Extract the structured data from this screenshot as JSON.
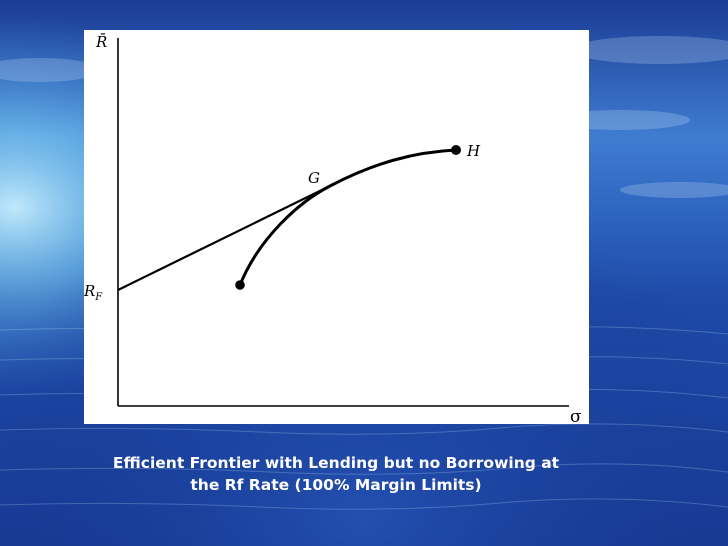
{
  "slide": {
    "caption_line1": "Efficient Frontier with Lending but no Borrowing at",
    "caption_line2": "the Rf Rate (100% Margin Limits)"
  },
  "diagram": {
    "y_axis_label": "R̄",
    "x_axis_label": "σ",
    "rf_label_main": "R",
    "rf_label_sub": "F",
    "point_g_label": "G",
    "point_h_label": "H"
  },
  "colors": {
    "line": "#000000",
    "panel": "#ffffff",
    "caption": "#ffffff",
    "sky_top": "#1c3f9a",
    "sky_mid": "#5aa8e6",
    "sea": "#163c98"
  }
}
